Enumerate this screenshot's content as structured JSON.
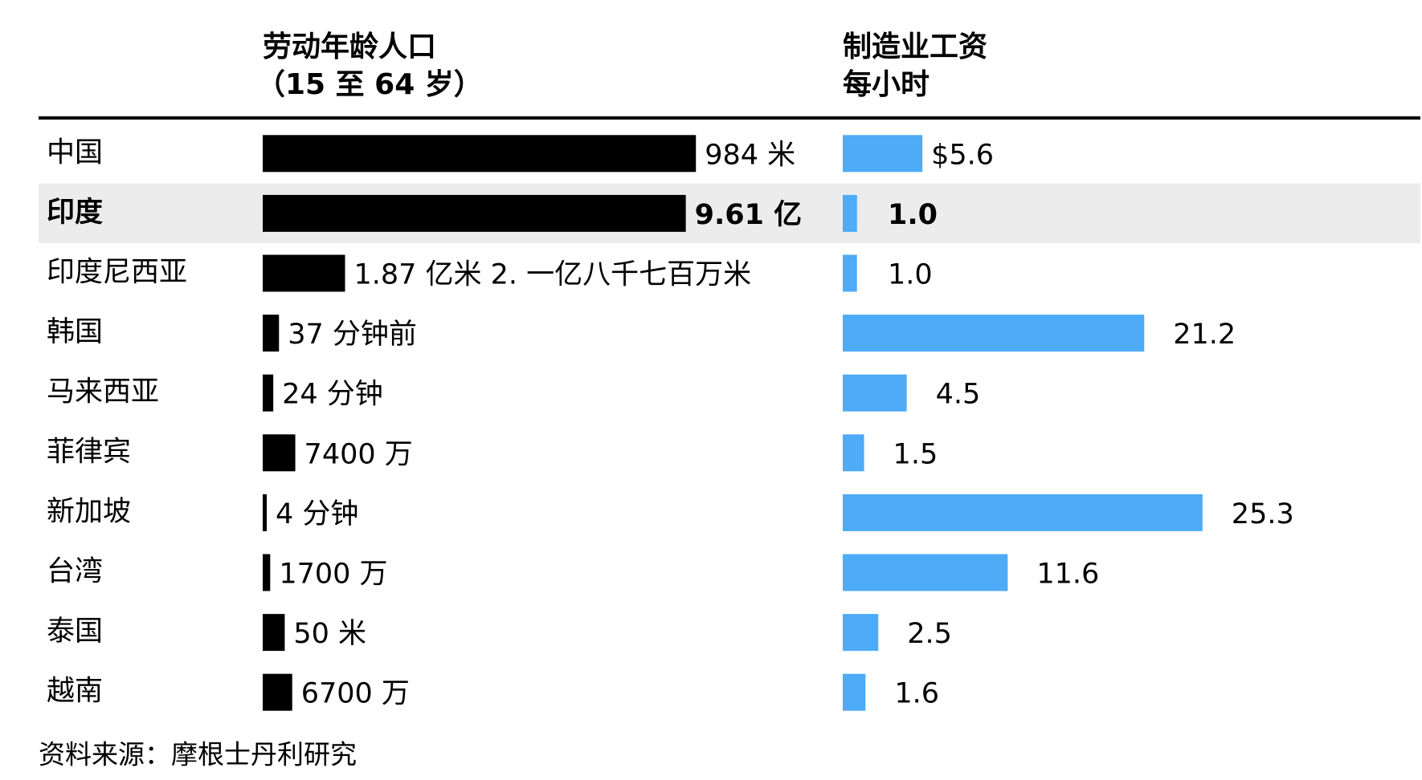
{
  "chart_data": {
    "type": "bar",
    "orientation": "horizontal",
    "panels": [
      {
        "title_lines": [
          "劳动年龄人口",
          "（15 至 64 岁）"
        ],
        "color": "#000000"
      },
      {
        "title_lines": [
          "制造业工资",
          "每小时"
        ],
        "color": "#4dabf7"
      }
    ],
    "highlight_color": "#ececec",
    "categories": [
      "中国",
      "印度",
      "印度尼西亚",
      "韩国",
      "马来西亚",
      "菲律宾",
      "新加坡",
      "台湾",
      "泰国",
      "越南"
    ],
    "highlight_index": 1,
    "series": [
      {
        "values": [
          984,
          961,
          187,
          37,
          24,
          74,
          4,
          17,
          50,
          67
        ],
        "unit": "百万",
        "labels": [
          "984 米",
          "9.61 亿",
          "1.87 亿米 2. 一亿八千七百万米",
          "37 分钟前",
          "24 分钟",
          "7400 万",
          "4 分钟",
          "1700 万",
          "50 米",
          "6700 万"
        ]
      },
      {
        "values": [
          5.6,
          1.0,
          1.0,
          21.2,
          4.5,
          1.5,
          25.3,
          11.6,
          2.5,
          1.6
        ],
        "unit": "美元",
        "labels": [
          "$5.6",
          "1.0",
          "1.0",
          "21.2",
          "4.5",
          "1.5",
          "25.3",
          "11.6",
          "2.5",
          "1.6"
        ]
      }
    ],
    "source": "资料来源：摩根士丹利研究"
  }
}
